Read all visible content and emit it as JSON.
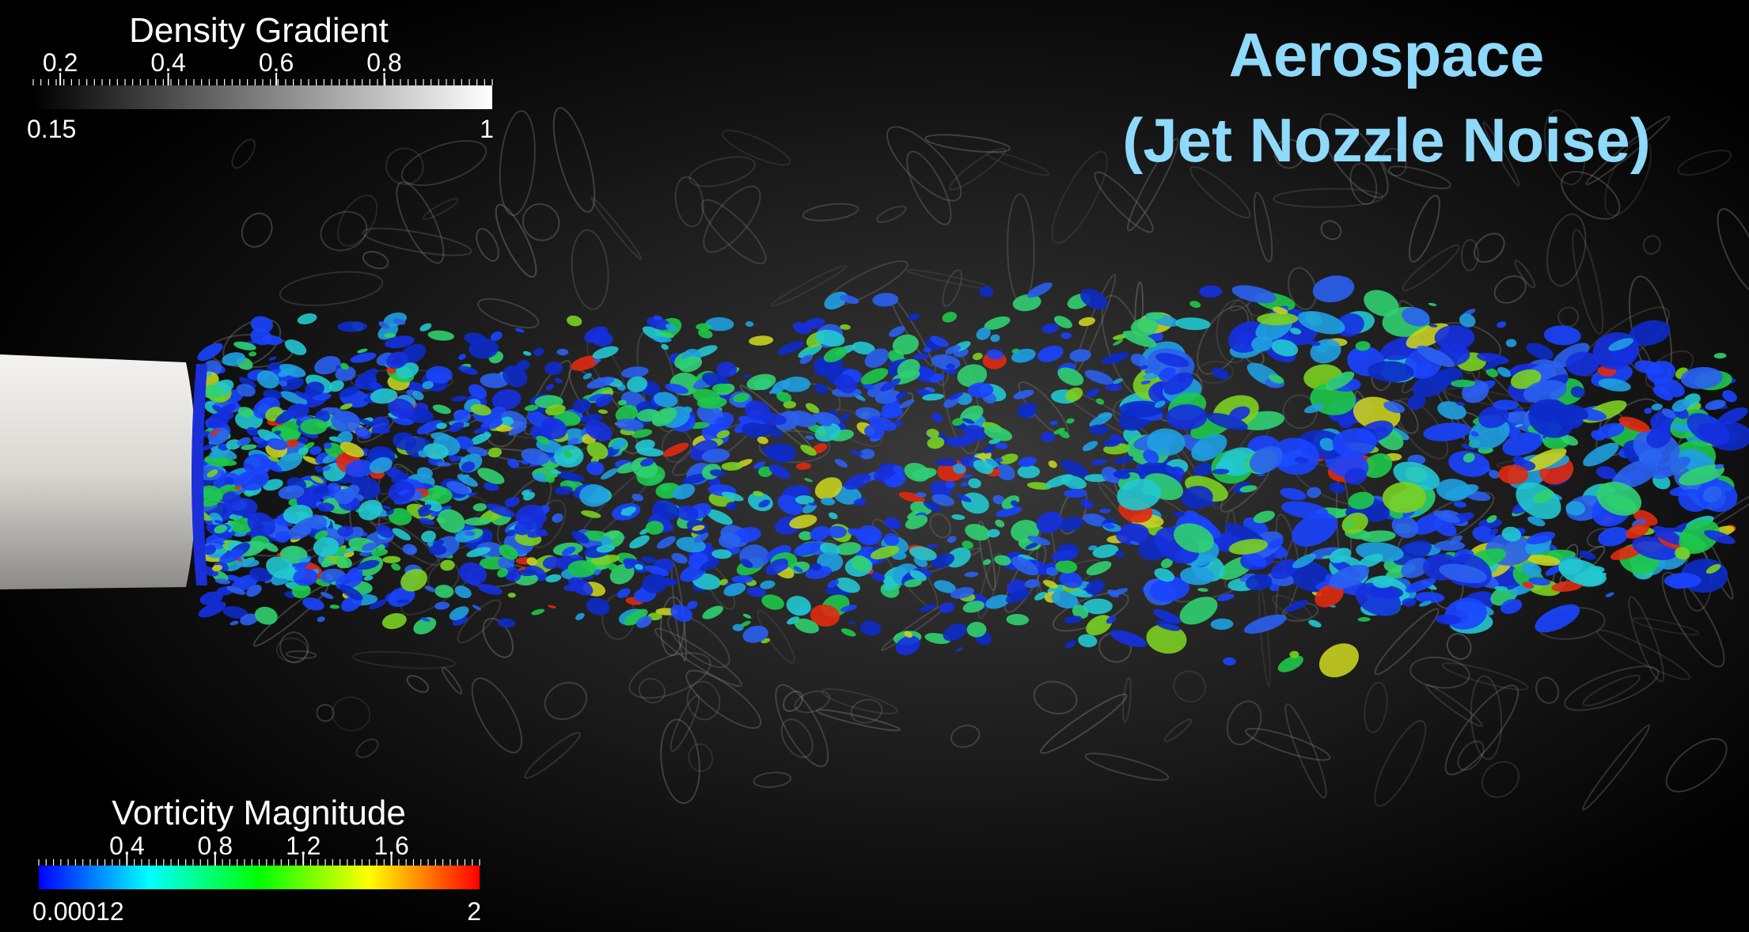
{
  "title": {
    "line1": "Aerospace",
    "line2": "(Jet Nozzle Noise)"
  },
  "density_legend": {
    "title": "Density Gradient",
    "ticks": [
      0.2,
      0.4,
      0.6,
      0.8
    ],
    "min": 0.15,
    "max": 1
  },
  "vorticity_legend": {
    "title": "Vorticity Magnitude",
    "ticks": [
      0.4,
      0.8,
      1.2,
      1.6
    ],
    "min": 0.00012,
    "max": 2
  }
}
